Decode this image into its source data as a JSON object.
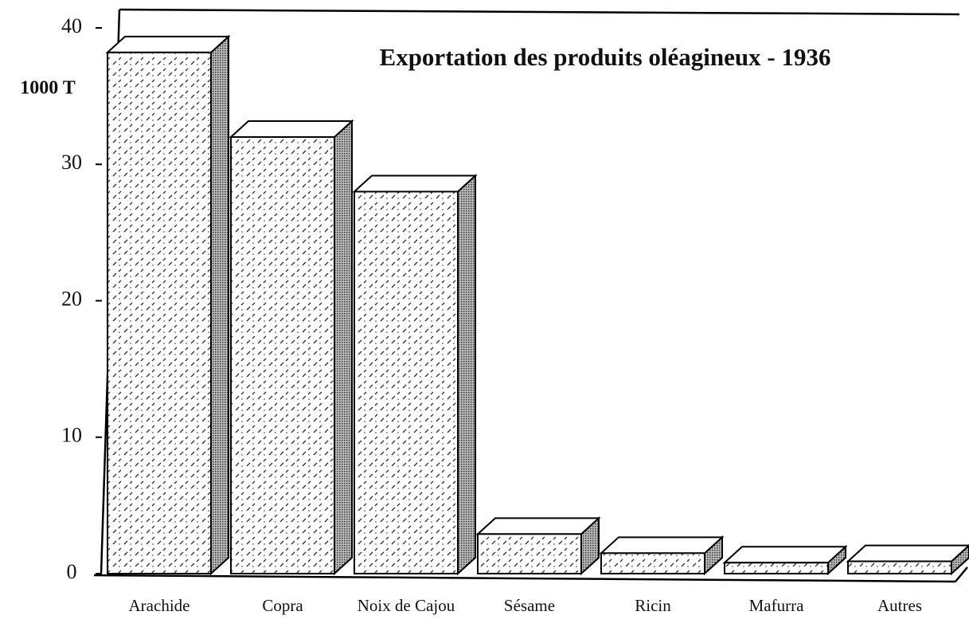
{
  "chart_data": {
    "type": "bar3d",
    "title": "Exportation des produits oléagineux - 1936",
    "y_label": "1000 T",
    "categories": [
      "Arachide",
      "Copra",
      "Noix de Cajou",
      "Sésame",
      "Ricin",
      "Mafurra",
      "Autres"
    ],
    "values": [
      38.2,
      32.0,
      28.0,
      2.9,
      1.5,
      0.8,
      0.9
    ],
    "ylim": [
      0,
      40
    ],
    "yticks": [
      0,
      10,
      20,
      30,
      40
    ],
    "color": "#ffffff",
    "side_color": "#888888"
  }
}
